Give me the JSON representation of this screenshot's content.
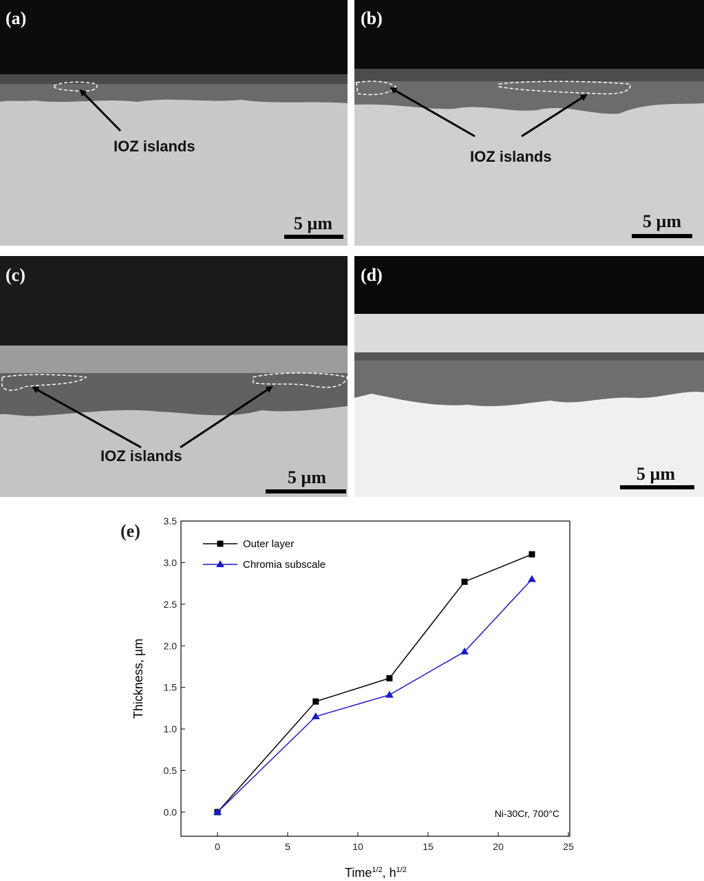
{
  "panels": [
    {
      "label": "(a)",
      "annotation": "IOZ islands",
      "scale": "5 µm"
    },
    {
      "label": "(b)",
      "annotation": "IOZ islands",
      "scale": "5 µm"
    },
    {
      "label": "(c)",
      "annotation": "IOZ islands",
      "scale": "5 µm"
    },
    {
      "label": "(d)",
      "scale": "5 µm"
    }
  ],
  "chart_data": {
    "type": "line",
    "panel_label": "(e)",
    "xlabel": [
      "Time",
      "1/2",
      ", h",
      "1/2"
    ],
    "ylabel": "Thickness, µm",
    "annotation": "Ni-30Cr, 700°C",
    "x": [
      0,
      7,
      12.25,
      17.6,
      22.4
    ],
    "series": [
      {
        "name": "Outer layer",
        "color": "#000000",
        "marker": "square",
        "values": [
          0,
          1.33,
          1.61,
          2.77,
          3.1
        ]
      },
      {
        "name": "Chromia subscale",
        "color": "#1a1acc",
        "marker": "triangle",
        "values": [
          0,
          1.15,
          1.41,
          1.93,
          2.8
        ]
      }
    ],
    "xlim": [
      -2.6,
      25.1
    ],
    "xticks": [
      0,
      5,
      10,
      15,
      20,
      25
    ],
    "ylim": [
      -0.29,
      3.5
    ],
    "yticks": [
      {
        "value": 0,
        "label": "0.0"
      },
      0.5,
      {
        "value": 1,
        "label": "1.0"
      },
      1.5,
      {
        "value": 2,
        "label": "2.0"
      },
      2.5,
      {
        "value": 3,
        "label": "3.0"
      },
      3.5
    ],
    "legend": "upper-left"
  }
}
